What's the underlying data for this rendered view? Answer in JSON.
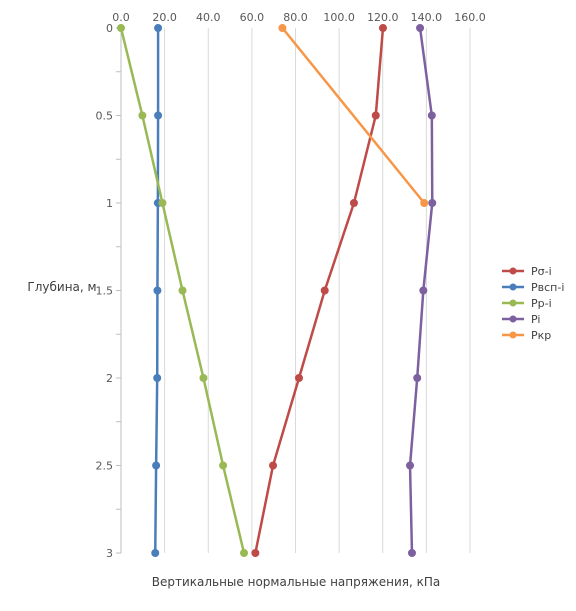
{
  "chart_data": {
    "type": "line",
    "xlabel": "Вертикальные нормальные напряжения, кПа",
    "ylabel": "Глубина, м",
    "xlim": [
      0,
      160
    ],
    "ylim": [
      0,
      3
    ],
    "y_reversed": true,
    "x_axis_position": "top",
    "x_ticks": [
      0,
      20,
      40,
      60,
      80,
      100,
      120,
      140,
      160
    ],
    "x_tick_labels": [
      "0.0",
      "20.0",
      "40.0",
      "60.0",
      "80.0",
      "100.0",
      "120.0",
      "140.0",
      "160.0"
    ],
    "y_ticks": [
      0,
      0.5,
      1,
      1.5,
      2,
      2.5,
      3
    ],
    "y_tick_labels": [
      "0",
      "0.5",
      "1",
      "1.5",
      "2",
      "2.5",
      "3"
    ],
    "grid": {
      "vertical": true,
      "horizontal": false
    },
    "legend_position": "right",
    "series": [
      {
        "name": "Pσ-i",
        "color": "#be4b48",
        "points": [
          [
            120.1,
            0
          ],
          [
            116.8,
            0.5
          ],
          [
            106.8,
            1
          ],
          [
            93.4,
            1.5
          ],
          [
            81.6,
            2
          ],
          [
            69.7,
            2.5
          ],
          [
            61.6,
            3
          ]
        ]
      },
      {
        "name": "Pвсп-i",
        "color": "#4a7ebb",
        "points": [
          [
            17.0,
            0
          ],
          [
            17.0,
            0.5
          ],
          [
            16.9,
            1
          ],
          [
            16.7,
            1.5
          ],
          [
            16.6,
            2
          ],
          [
            16.1,
            2.5
          ],
          [
            15.7,
            3
          ]
        ]
      },
      {
        "name": "Pp-i",
        "color": "#98b954",
        "points": [
          [
            0.0,
            0
          ],
          [
            9.8,
            0.5
          ],
          [
            19.0,
            1
          ],
          [
            28.2,
            1.5
          ],
          [
            37.8,
            2
          ],
          [
            46.8,
            2.5
          ],
          [
            56.4,
            3
          ]
        ]
      },
      {
        "name": "Pi",
        "color": "#7d60a0",
        "points": [
          [
            137.1,
            0
          ],
          [
            142.5,
            0.5
          ],
          [
            142.7,
            1
          ],
          [
            138.6,
            1.5
          ],
          [
            135.8,
            2
          ],
          [
            132.5,
            2.5
          ],
          [
            133.4,
            3
          ]
        ]
      },
      {
        "name": "Pкр",
        "color": "#f79646",
        "points": [
          [
            74.0,
            0
          ],
          [
            139.0,
            1
          ]
        ]
      }
    ]
  }
}
